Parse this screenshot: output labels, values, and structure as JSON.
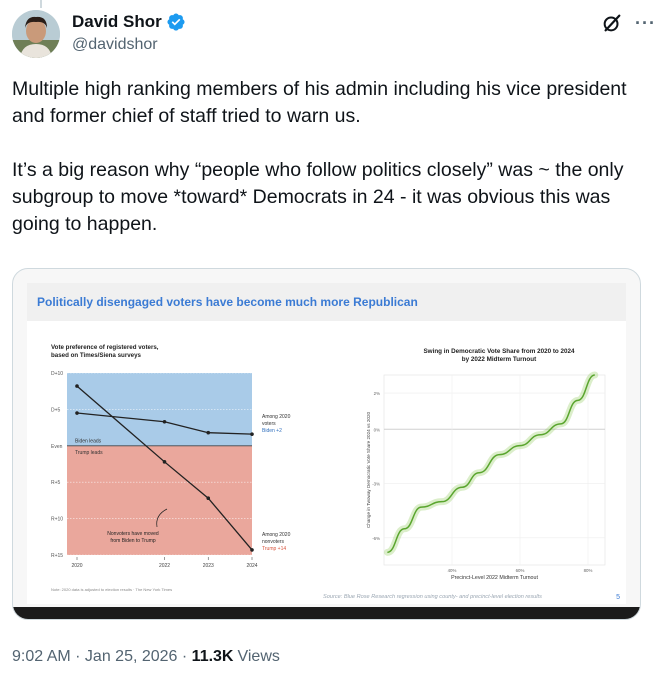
{
  "author": {
    "name": "David Shor",
    "handle": "@davidshor"
  },
  "icons": {
    "verified": "verified-badge-icon",
    "grok": "grok-icon",
    "more": "more-options-icon"
  },
  "colors": {
    "verified_blue": "#1d9bf0",
    "slide_title_blue": "#3b7bd4",
    "dem_blue": "#a9cbe8",
    "rep_red": "#eaa79c",
    "swing_green": "#7dc242"
  },
  "tweet": {
    "text": "Multiple high ranking members of his admin including his vice president and former chief of staff tried to warn us.\n\nIt’s a big reason why  “people who follow politics closely” was ~ the only subgroup to move *toward* Democrats in 24 - it was obvious this was going to happen."
  },
  "slide": {
    "title": "Politically disengaged voters have become much more Republican",
    "page_number": "5",
    "source": "Source: Blue Rose Research regression using county- and precinct-level election results"
  },
  "chart_data": [
    {
      "type": "line",
      "title": "Vote preference of registered voters,",
      "subtitle": "based on Times/Siena surveys",
      "y_tick_labels": [
        "D+10",
        "D+5",
        "Even",
        "R+5",
        "R+10",
        "R+15"
      ],
      "y_tick_values": [
        10,
        5,
        0,
        -5,
        -10,
        -15
      ],
      "ylim": [
        -15,
        10
      ],
      "x": [
        2020,
        2022,
        2023,
        2024
      ],
      "x_tick_labels": [
        "2020",
        "2022",
        "2023",
        "2024"
      ],
      "region_labels": {
        "upper": "Biden leads",
        "lower": "Trump leads"
      },
      "series": [
        {
          "values": [
            4.5,
            3.3,
            1.8,
            1.6
          ],
          "end_label": [
            "Among 2020",
            "voters"
          ],
          "end_value": "Biden +2"
        },
        {
          "values": [
            8.2,
            -2.2,
            -7.2,
            -14.3
          ],
          "end_label": [
            "Among 2020",
            "nonvoters"
          ],
          "end_value": "Trump +14"
        }
      ],
      "annotation": [
        "Nonvoters have moved",
        "from Biden to Trump"
      ],
      "note": "Note: 2020 data is adjusted to election results · The New York Times"
    },
    {
      "type": "line",
      "title": [
        "Swing in Democratic Vote Share from 2020 to 2024",
        "by 2022 Midterm Turnout"
      ],
      "xlabel": "Precinct-Level 2022 Midterm Turnout",
      "ylabel": "Change in Twoway Democratic Vote Share 2024 vs 2020",
      "x_tick_labels": [
        "40%",
        "60%",
        "80%"
      ],
      "x_tick_values": [
        40,
        60,
        80
      ],
      "y_tick_labels": [
        "2%",
        "0%",
        "-3%",
        "-6%"
      ],
      "y_tick_values": [
        2,
        0,
        -3,
        -6
      ],
      "xlim": [
        20,
        85
      ],
      "ylim": [
        -7.5,
        3
      ],
      "grid": true,
      "x": [
        21,
        26,
        31,
        37,
        43,
        48,
        54,
        60,
        66,
        72,
        77,
        82
      ],
      "values": [
        -6.8,
        -5.5,
        -4.3,
        -4.0,
        -3.2,
        -2.4,
        -1.4,
        -0.9,
        -0.3,
        0.3,
        1.6,
        3.0
      ]
    }
  ],
  "timestamp": "9:02 AM · Jan 25, 2026 · ",
  "views": {
    "count": "11.3K",
    "label": "Views"
  }
}
